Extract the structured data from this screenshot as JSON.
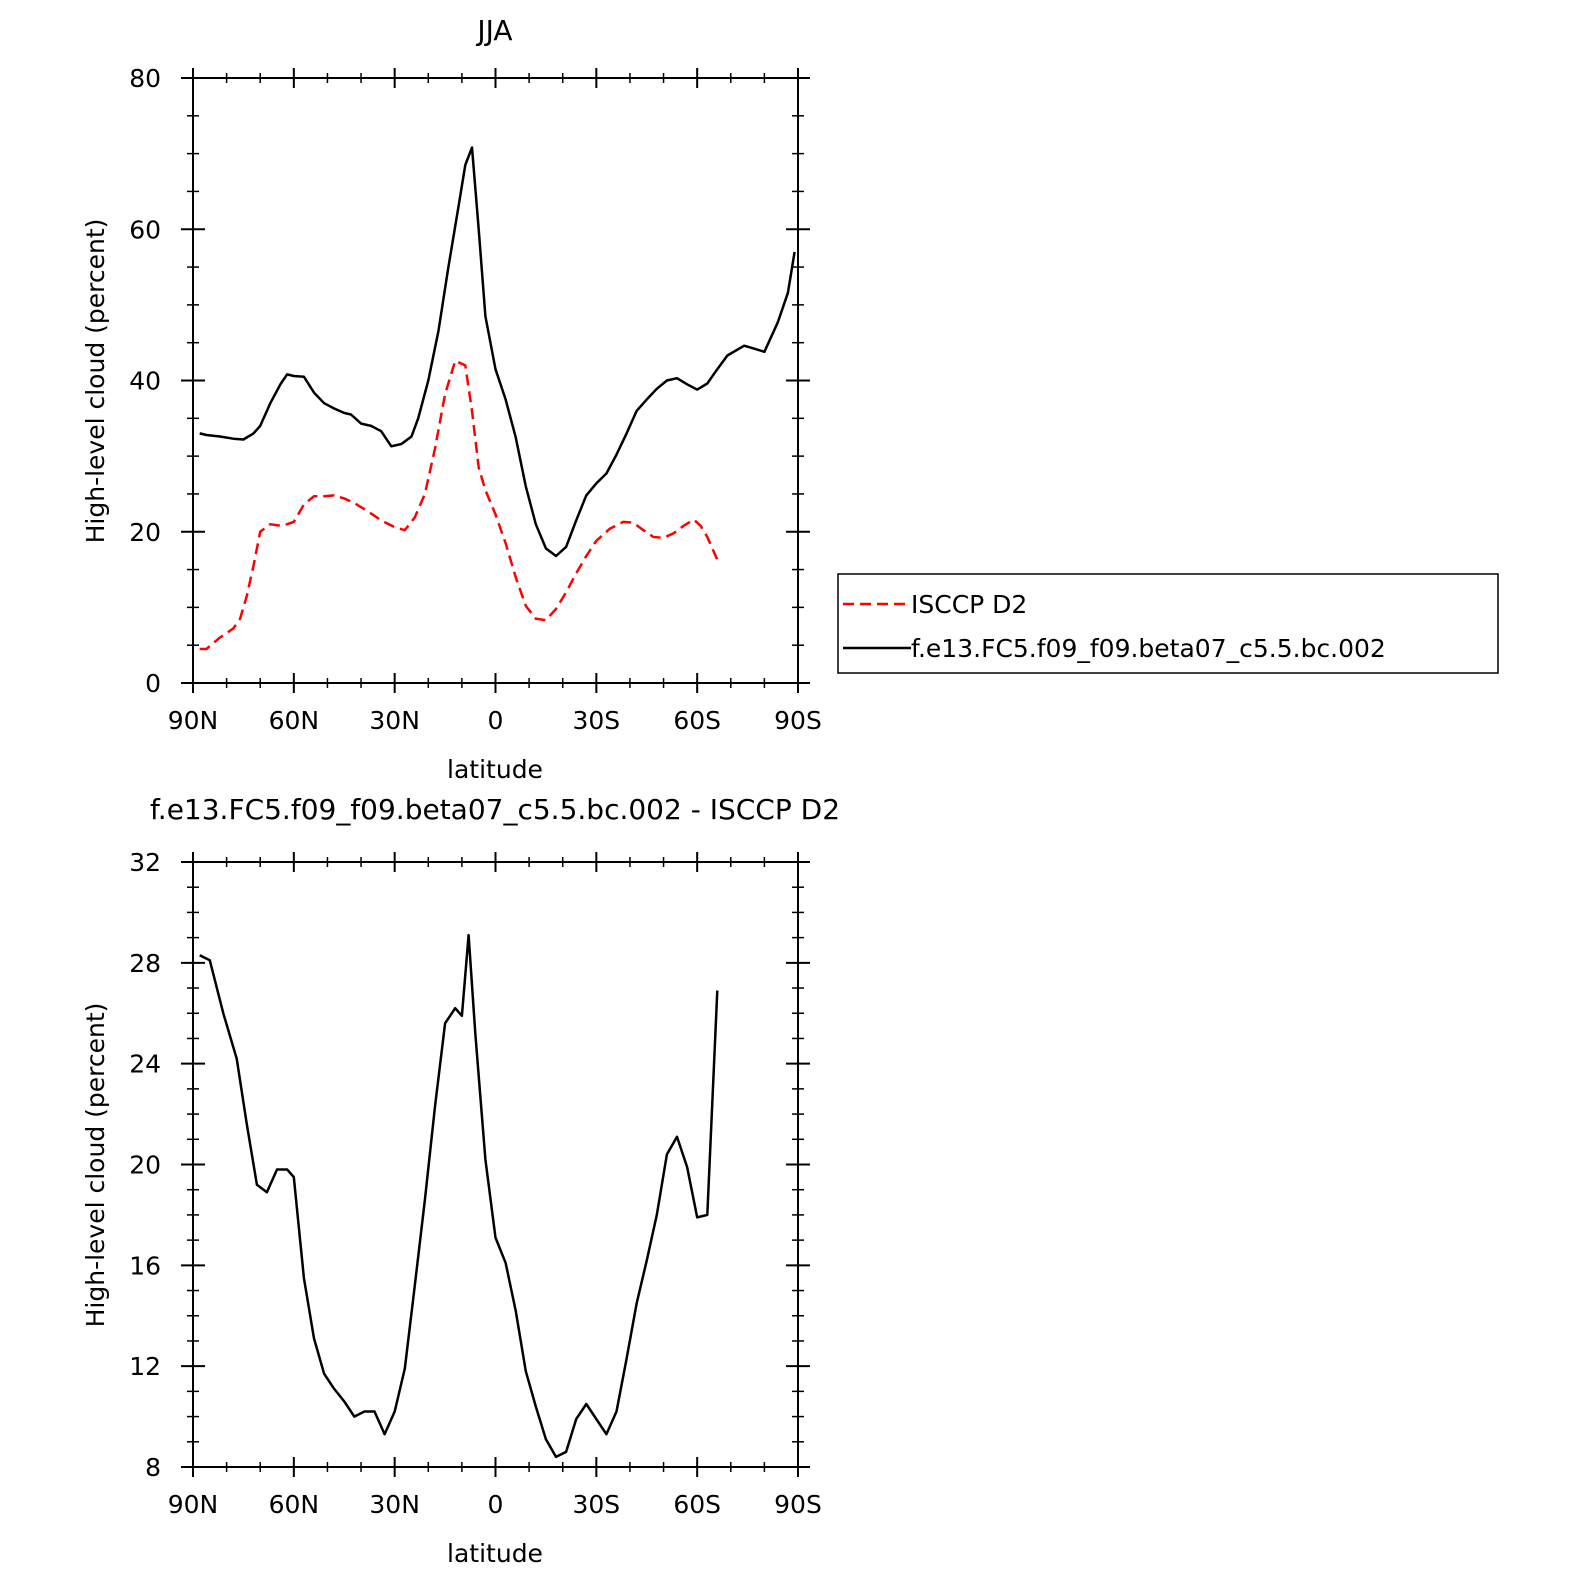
{
  "colors": {
    "model": "#000000",
    "obs": "#ff0000",
    "axes": "#000000",
    "background": "#ffffff"
  },
  "chart_data": [
    {
      "type": "line",
      "title": "JJA",
      "xlabel": "latitude",
      "ylabel": "High-level cloud (percent)",
      "xlim": [
        90,
        -90
      ],
      "ylim": [
        0,
        80
      ],
      "xticks": [
        90,
        60,
        30,
        0,
        -30,
        -60,
        -90
      ],
      "xtick_labels": [
        "90N",
        "60N",
        "30N",
        "0",
        "30S",
        "60S",
        "90S"
      ],
      "yticks": [
        0,
        20,
        40,
        60,
        80
      ],
      "ytick_labels": [
        "0",
        "20",
        "40",
        "60",
        "80"
      ],
      "grid": false,
      "legend": {
        "placement": "right",
        "entries": [
          "ISCCP D2",
          "f.e13.FC5.f09_f09.beta07_c5.5.bc.002"
        ]
      },
      "series": [
        {
          "name": "ISCCP D2",
          "style": "dashed",
          "color": "#ff0000",
          "x": [
            88,
            86,
            82,
            78,
            76,
            74,
            72,
            70,
            67,
            64,
            62,
            60,
            57,
            54,
            51,
            48,
            45,
            42,
            38,
            34,
            30,
            27,
            24,
            21,
            18,
            15,
            12,
            9,
            7,
            5,
            3,
            0,
            -3,
            -6,
            -9,
            -12,
            -15,
            -18,
            -21,
            -24,
            -27,
            -30,
            -34,
            -38,
            -41,
            -44,
            -47,
            -50,
            -53,
            -56,
            -59,
            -61,
            -63,
            -66
          ],
          "values": [
            4.5,
            4.5,
            6.0,
            7.2,
            8.5,
            11.5,
            15.5,
            20.0,
            21.0,
            20.8,
            21.0,
            21.3,
            23.6,
            24.7,
            24.7,
            24.8,
            24.4,
            23.8,
            22.7,
            21.5,
            20.6,
            20.2,
            21.9,
            25.0,
            31.0,
            38.2,
            42.6,
            42.0,
            36.0,
            28.5,
            25.5,
            22.3,
            18.5,
            14.0,
            10.2,
            8.5,
            8.3,
            9.8,
            12.0,
            14.5,
            16.8,
            18.8,
            20.4,
            21.3,
            21.2,
            20.2,
            19.3,
            19.2,
            19.8,
            20.8,
            21.6,
            20.8,
            19.3,
            16.3
          ]
        },
        {
          "name": "f.e13.FC5.f09_f09.beta07_c5.5.bc.002",
          "style": "solid",
          "color": "#000000",
          "x": [
            88,
            86,
            82,
            78,
            75,
            72,
            70,
            67,
            64,
            62,
            60,
            57,
            54,
            51,
            48,
            45,
            43,
            40,
            37,
            34,
            31,
            28,
            25,
            23,
            20,
            17,
            14,
            11,
            9,
            7,
            5,
            3,
            0,
            -3,
            -6,
            -9,
            -12,
            -15,
            -18,
            -21,
            -24,
            -27,
            -30,
            -33,
            -36,
            -39,
            -42,
            -45,
            -48,
            -51,
            -54,
            -57,
            -60,
            -63,
            -66,
            -69,
            -74,
            -77,
            -80,
            -84,
            -87,
            -89
          ],
          "values": [
            33.0,
            32.8,
            32.6,
            32.3,
            32.2,
            33.0,
            34.0,
            37.0,
            39.5,
            40.8,
            40.6,
            40.5,
            38.4,
            37.0,
            36.3,
            35.7,
            35.5,
            34.3,
            34.0,
            33.3,
            31.3,
            31.6,
            32.6,
            35.0,
            40.0,
            46.5,
            55.0,
            63.0,
            68.5,
            70.8,
            60.0,
            48.5,
            41.5,
            37.5,
            32.5,
            26.0,
            21.0,
            17.8,
            16.8,
            18.0,
            21.5,
            24.8,
            26.4,
            27.7,
            30.2,
            33.0,
            36.0,
            37.5,
            38.9,
            40.0,
            40.3,
            39.5,
            38.8,
            39.6,
            41.5,
            43.3,
            44.6,
            44.2,
            43.8,
            47.7,
            51.6,
            57.0
          ]
        }
      ]
    },
    {
      "type": "line",
      "title": "f.e13.FC5.f09_f09.beta07_c5.5.bc.002 - ISCCP D2",
      "xlabel": "latitude",
      "ylabel": "High-level cloud (percent)",
      "xlim": [
        90,
        -90
      ],
      "ylim": [
        8,
        32
      ],
      "xticks": [
        90,
        60,
        30,
        0,
        -30,
        -60,
        -90
      ],
      "xtick_labels": [
        "90N",
        "60N",
        "30N",
        "0",
        "30S",
        "60S",
        "90S"
      ],
      "yticks": [
        8,
        12,
        16,
        20,
        24,
        28,
        32
      ],
      "ytick_labels": [
        "8",
        "12",
        "16",
        "20",
        "24",
        "28",
        "32"
      ],
      "grid": false,
      "series": [
        {
          "style": "solid",
          "color": "#000000",
          "x": [
            88,
            85,
            81,
            77,
            74,
            71,
            68,
            65,
            62,
            60,
            57,
            54,
            51,
            48,
            45,
            42,
            39,
            36,
            33,
            30,
            27,
            24,
            21,
            18,
            15,
            12,
            10,
            8,
            6,
            3,
            0,
            -3,
            -6,
            -9,
            -12,
            -15,
            -18,
            -21,
            -24,
            -27,
            -30,
            -33,
            -36,
            -39,
            -42,
            -45,
            -48,
            -51,
            -54,
            -57,
            -60,
            -63,
            -66
          ],
          "values": [
            28.3,
            28.1,
            26.0,
            24.2,
            21.6,
            19.2,
            18.9,
            19.8,
            19.8,
            19.5,
            15.5,
            13.1,
            11.7,
            11.1,
            10.6,
            10.0,
            10.2,
            10.2,
            9.3,
            10.2,
            11.9,
            15.2,
            18.6,
            22.3,
            25.6,
            26.2,
            25.9,
            29.1,
            25.2,
            20.2,
            17.1,
            16.1,
            14.2,
            11.8,
            10.4,
            9.1,
            8.4,
            8.6,
            9.9,
            10.5,
            9.9,
            9.3,
            10.2,
            12.3,
            14.5,
            16.2,
            18.0,
            20.4,
            21.1,
            19.9,
            17.9,
            18.0,
            26.9
          ]
        }
      ]
    }
  ]
}
